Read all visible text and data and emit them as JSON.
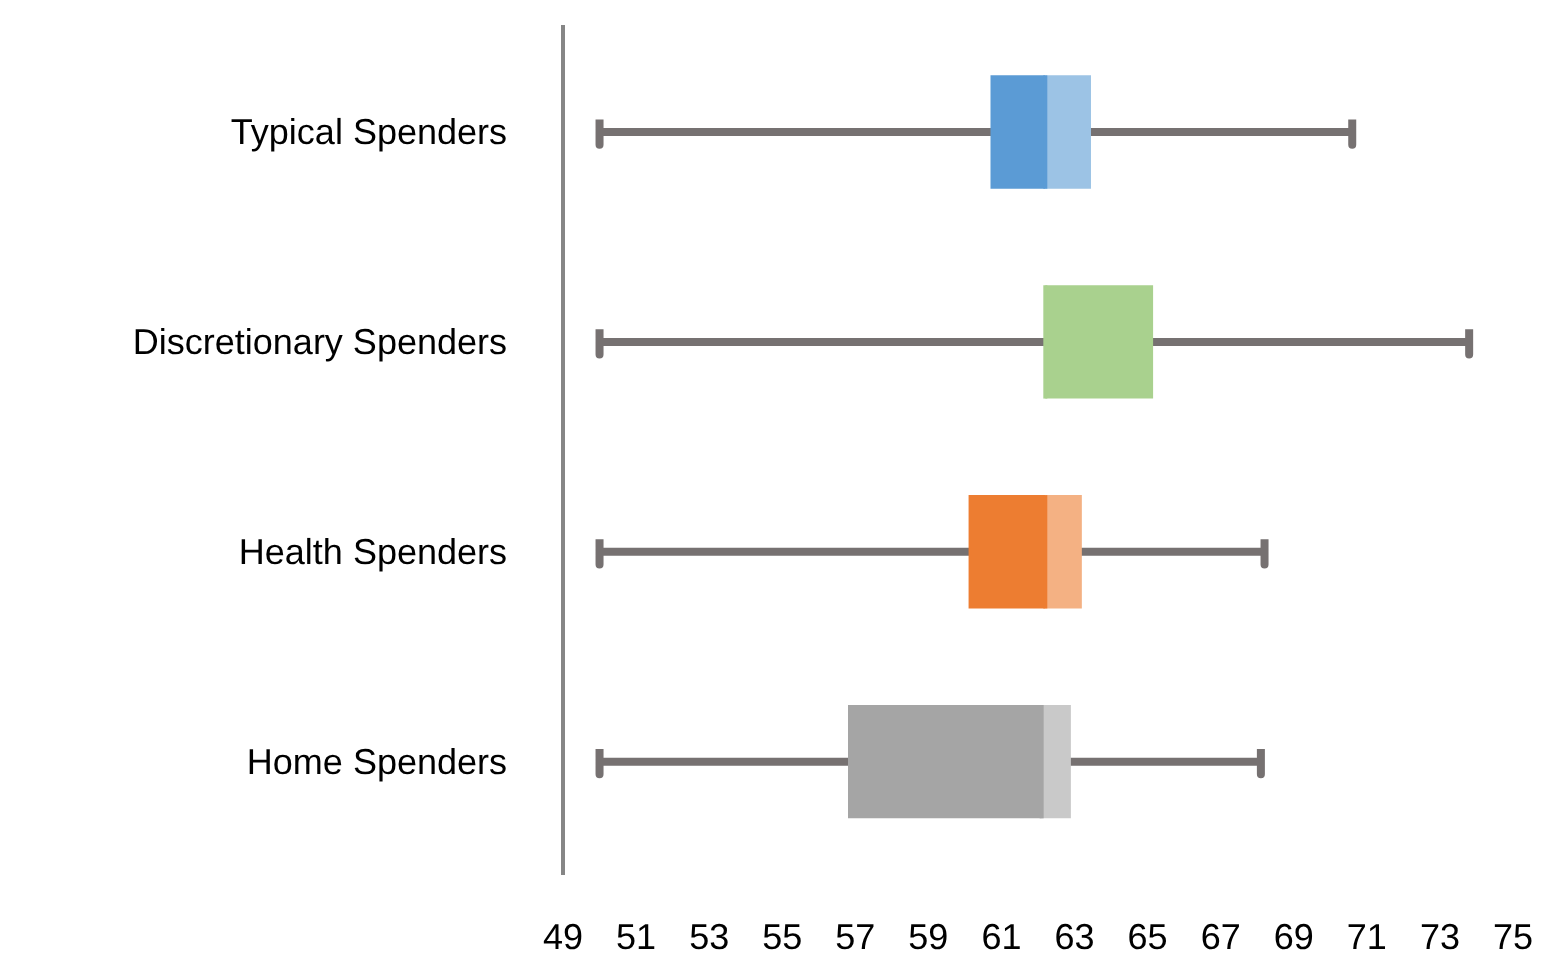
{
  "chart_data": {
    "type": "box",
    "orientation": "horizontal",
    "categories": [
      "Typical Spenders",
      "Discretionary Spenders",
      "Health Spenders",
      "Home Spenders"
    ],
    "boxes": [
      {
        "low": 50,
        "q1": 60.7,
        "median": 62.2,
        "q3": 63.45,
        "high": 70.6
      },
      {
        "low": 50,
        "q1": 62.2,
        "median": 62.2,
        "q3": 65.15,
        "high": 73.8
      },
      {
        "low": 50,
        "q1": 60.1,
        "median": 62.2,
        "q3": 63.2,
        "high": 68.2
      },
      {
        "low": 50,
        "q1": 56.8,
        "median": 62.1,
        "q3": 62.9,
        "high": 68.1
      }
    ],
    "colors": [
      "#5b9bd5",
      "#a9d18e",
      "#ed7d31",
      "#a5a5a5"
    ],
    "xlim": [
      49,
      75
    ],
    "xticks": [
      49,
      51,
      53,
      55,
      57,
      59,
      61,
      63,
      65,
      67,
      69,
      71,
      73,
      75
    ],
    "grid": false
  }
}
